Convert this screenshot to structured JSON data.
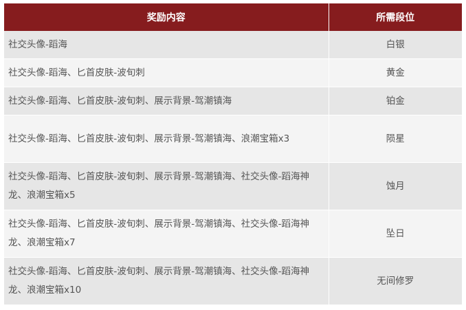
{
  "header": {
    "reward": "奖励内容",
    "rank": "所需段位"
  },
  "rows": [
    {
      "reward": "社交头像-蹈海",
      "rank": "白银"
    },
    {
      "reward": "社交头像-蹈海、匕首皮肤-波旬刺",
      "rank": "黄金"
    },
    {
      "reward": "社交头像-蹈海、匕首皮肤-波旬刺、展示背景-驾潮镇海",
      "rank": "铂金"
    },
    {
      "reward": "社交头像-蹈海、匕首皮肤-波旬刺、展示背景-驾潮镇海、浪潮宝箱x3",
      "rank": "陨星"
    },
    {
      "reward": "社交头像-蹈海、匕首皮肤-波旬刺、展示背景-驾潮镇海、社交头像-蹈海神龙、浪潮宝箱x5",
      "rank": "蚀月"
    },
    {
      "reward": "社交头像-蹈海、匕首皮肤-波旬刺、展示背景-驾潮镇海、社交头像-蹈海神龙、浪潮宝箱x7",
      "rank": "坠日"
    },
    {
      "reward": "社交头像-蹈海、匕首皮肤-波旬刺、展示背景-驾潮镇海、社交头像-蹈海神龙、浪潮宝箱x10",
      "rank": "无间修罗"
    }
  ],
  "colors": {
    "header_bg": "#861c1e",
    "row_odd": "#e6e6e6",
    "row_even": "#f4f4f4"
  }
}
